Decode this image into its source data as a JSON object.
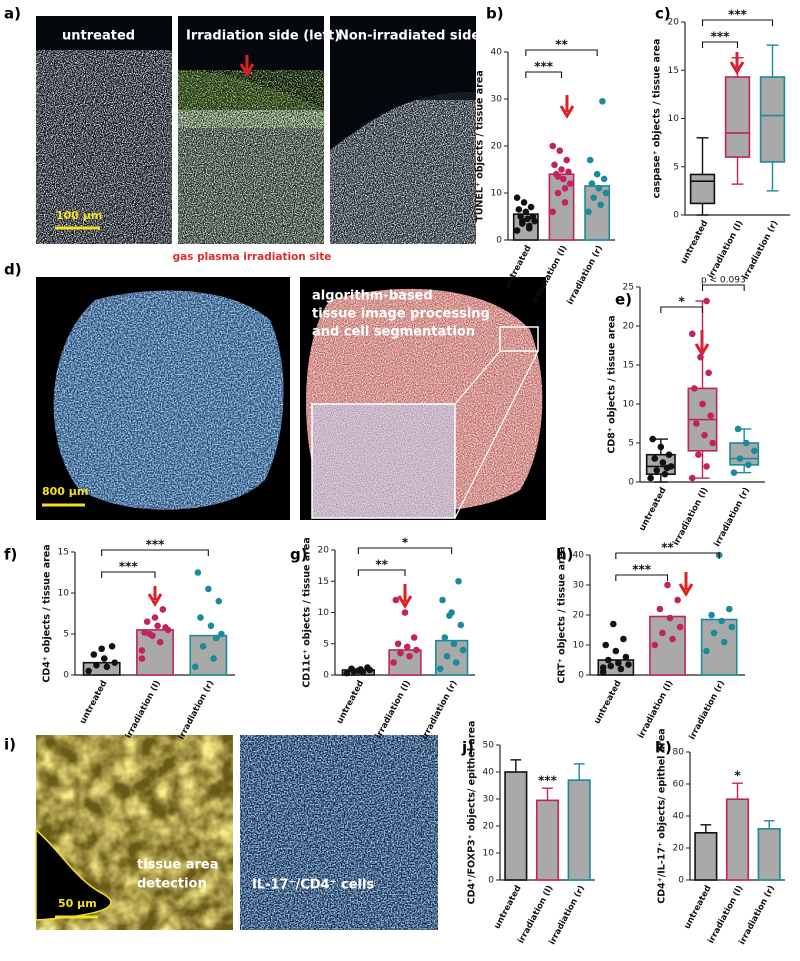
{
  "images": {
    "a": {
      "label": "a)",
      "titles": [
        "untreated",
        "Irradiation side (left)",
        "Non-irradiated side (right)"
      ],
      "scale": "100 µm",
      "caption": "gas plasma irradiation site"
    },
    "d": {
      "label": "d)",
      "scale": "800 µm",
      "text": [
        "algorithm-based",
        "tissue image processing",
        "and cell segmentation"
      ]
    },
    "i": {
      "label": "i)",
      "scale": "50 µm",
      "texts": [
        [
          "tissue area",
          "detection"
        ],
        [
          "IL-17⁺/CD4⁺ cells"
        ]
      ]
    }
  },
  "chart_data": [
    {
      "type": "bar",
      "label": "b)",
      "ylabel": "TUNEL⁺ objects / tissue area",
      "categories": [
        "untreated",
        "irradiation (l)",
        "irradiation (r)"
      ],
      "colors": [
        "#111111",
        "#c2235e",
        "#1a8b9b"
      ],
      "bar_fill": "#a9a9a9",
      "values": [
        5.5,
        14,
        11.5
      ],
      "points": [
        [
          2,
          3,
          3.5,
          4,
          4.5,
          5,
          5,
          6,
          6.5,
          7,
          8,
          9,
          2.5,
          4
        ],
        [
          6,
          8,
          10,
          12,
          13,
          14,
          14.5,
          15,
          16,
          17,
          19,
          20,
          11,
          13.5
        ],
        [
          6,
          7.5,
          9,
          10,
          11,
          12,
          13,
          14,
          17,
          29.5
        ]
      ],
      "ylim": [
        0,
        40
      ],
      "yticks": [
        0,
        10,
        20,
        30,
        40
      ],
      "annotations": [
        {
          "text": "***",
          "between": [
            "untreated",
            "irradiation (l)"
          ]
        },
        {
          "text": "**",
          "between": [
            "untreated",
            "irradiation (r)"
          ]
        }
      ]
    },
    {
      "type": "box",
      "label": "c)",
      "ylabel": "caspase⁺ objects / tissue area",
      "categories": [
        "untreated",
        "irradiation (l)",
        "irradiation (r)"
      ],
      "colors": [
        "#111111",
        "#c2235e",
        "#1a8b9b"
      ],
      "bar_fill": "#a9a9a9",
      "boxes": [
        {
          "min": 0,
          "q1": 1.2,
          "median": 3.5,
          "q3": 4.2,
          "max": 8
        },
        {
          "min": 3.2,
          "q1": 6,
          "median": 8.5,
          "q3": 14.3,
          "max": 16.3
        },
        {
          "min": 2.5,
          "q1": 5.5,
          "median": 10.3,
          "q3": 14.3,
          "max": 17.6
        }
      ],
      "ylim": [
        0,
        20
      ],
      "yticks": [
        0,
        5,
        10,
        15,
        20
      ],
      "annotations": [
        {
          "text": "***",
          "between": [
            "untreated",
            "irradiation (l)"
          ]
        },
        {
          "text": "***",
          "between": [
            "untreated",
            "irradiation (r)"
          ]
        }
      ]
    },
    {
      "type": "box",
      "label": "e)",
      "ylabel": "CD8⁺ objects / tissue area",
      "categories": [
        "untreated",
        "irradiation (l)",
        "irradiation (r)"
      ],
      "colors": [
        "#111111",
        "#c2235e",
        "#1a8b9b"
      ],
      "bar_fill": "#a9a9a9",
      "boxes": [
        {
          "min": 0,
          "q1": 1,
          "median": 2,
          "q3": 3.5,
          "max": 5.5
        },
        {
          "min": 0.5,
          "q1": 4,
          "median": 8,
          "q3": 12,
          "max": 23.2
        },
        {
          "min": 1.2,
          "q1": 2.2,
          "median": 3,
          "q3": 5,
          "max": 6.8
        }
      ],
      "points": [
        [
          0.5,
          1,
          1.5,
          2,
          2.5,
          3,
          3.5,
          4.5,
          5.5,
          1.8
        ],
        [
          0.5,
          2,
          3.5,
          5,
          6,
          7.5,
          8.5,
          10,
          12,
          14,
          16,
          19,
          23.2
        ],
        [
          1.2,
          2.2,
          3,
          4,
          5,
          6.8
        ]
      ],
      "ylim": [
        0,
        25
      ],
      "yticks": [
        0,
        5,
        10,
        15,
        20,
        25
      ],
      "annotations": [
        {
          "text": "*",
          "between": [
            "untreated",
            "irradiation (l)"
          ]
        },
        {
          "text": "p < 0.093",
          "between": [
            "irradiation (l)",
            "irradiation (r)"
          ]
        }
      ]
    },
    {
      "type": "bar",
      "label": "f)",
      "ylabel": "CD4⁺ objects / tissue area",
      "categories": [
        "untreated",
        "irradiation (l)",
        "irradiation (r)"
      ],
      "colors": [
        "#111111",
        "#c2235e",
        "#1a8b9b"
      ],
      "bar_fill": "#a9a9a9",
      "values": [
        1.5,
        5.5,
        4.8
      ],
      "points": [
        [
          0.5,
          1,
          1.2,
          1.5,
          2,
          2.5,
          3.5,
          3.2
        ],
        [
          2,
          4,
          5,
          5.5,
          6,
          6.5,
          5.8,
          7,
          5.2,
          8,
          4.8,
          3
        ],
        [
          1,
          2,
          3.5,
          5,
          6,
          7,
          9,
          10.5,
          12.5,
          4.5
        ]
      ],
      "ylim": [
        0,
        15
      ],
      "yticks": [
        0,
        5,
        10,
        15
      ],
      "annotations": [
        {
          "text": "***",
          "between": [
            "untreated",
            "irradiation (l)"
          ]
        },
        {
          "text": "***",
          "between": [
            "untreated",
            "irradiation (r)"
          ]
        }
      ]
    },
    {
      "type": "bar",
      "label": "g)",
      "ylabel": "CD11c⁺ objects / tissue area",
      "categories": [
        "untreated",
        "irradiation (l)",
        "irradiation (r)"
      ],
      "colors": [
        "#111111",
        "#c2235e",
        "#1a8b9b"
      ],
      "bar_fill": "#a9a9a9",
      "values": [
        0.8,
        4,
        5.5
      ],
      "points": [
        [
          0.3,
          0.5,
          0.6,
          0.8,
          0.9,
          1,
          1.2,
          0.7
        ],
        [
          2,
          3,
          3.5,
          4,
          4.5,
          5,
          6,
          10,
          12
        ],
        [
          1,
          2,
          3,
          4,
          5,
          6,
          8,
          10,
          12,
          15,
          9.5
        ]
      ],
      "ylim": [
        0,
        20
      ],
      "yticks": [
        0,
        5,
        10,
        15,
        20
      ],
      "annotations": [
        {
          "text": "**",
          "between": [
            "untreated",
            "irradiation (l)"
          ]
        },
        {
          "text": "*",
          "between": [
            "untreated",
            "irradiation (r)"
          ]
        }
      ]
    },
    {
      "type": "bar",
      "label": "h)",
      "ylabel": "CRT⁺ objects / tissue area",
      "categories": [
        "untreated",
        "irradiation (l)",
        "irradiation (r)"
      ],
      "colors": [
        "#111111",
        "#c2235e",
        "#1a8b9b"
      ],
      "bar_fill": "#a9a9a9",
      "values": [
        5,
        19.5,
        18.5
      ],
      "points": [
        [
          1,
          2,
          3,
          3.5,
          4,
          5,
          6,
          8,
          10,
          12,
          17,
          2.5
        ],
        [
          10,
          12,
          14,
          16,
          19,
          22,
          25,
          30
        ],
        [
          8,
          11,
          14,
          16,
          18,
          20,
          22,
          40
        ]
      ],
      "ylim": [
        0,
        40
      ],
      "yticks": [
        0,
        10,
        20,
        30,
        40
      ],
      "annotations": [
        {
          "text": "***",
          "between": [
            "untreated",
            "irradiation (l)"
          ]
        },
        {
          "text": "**",
          "between": [
            "untreated",
            "irradiation (r)"
          ]
        }
      ]
    },
    {
      "type": "bar",
      "label": "j)",
      "ylabel": "CD4⁺/FOXP3⁺ objects/ epithel area",
      "categories": [
        "untreated",
        "irradiation (l)",
        "irradiation (r)"
      ],
      "colors": [
        "#111111",
        "#c2235e",
        "#1a8b9b"
      ],
      "bar_fill": "#a9a9a9",
      "values": [
        40,
        29.5,
        37
      ],
      "errors": [
        4.5,
        4.5,
        6
      ],
      "ylim": [
        0,
        50
      ],
      "yticks": [
        0,
        10,
        20,
        30,
        40,
        50
      ],
      "annotations": [
        {
          "text": "***",
          "over": "irradiation (l)"
        }
      ]
    },
    {
      "type": "bar",
      "label": "k)",
      "ylabel": "CD4⁺/IL-17⁺ objects/ epithel area",
      "categories": [
        "untreated",
        "irradiation (l)",
        "irradiation (r)"
      ],
      "colors": [
        "#111111",
        "#c2235e",
        "#1a8b9b"
      ],
      "bar_fill": "#a9a9a9",
      "values": [
        29.5,
        50.5,
        32
      ],
      "errors": [
        5,
        10,
        5
      ],
      "ylim": [
        0,
        80
      ],
      "yticks": [
        0,
        20,
        40,
        60,
        80
      ],
      "annotations": [
        {
          "text": "*",
          "over": "irradiation (l)"
        }
      ]
    }
  ]
}
